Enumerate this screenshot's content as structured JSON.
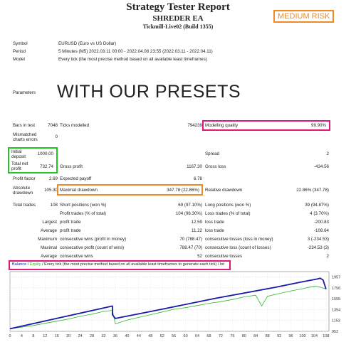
{
  "header": {
    "title": "Strategy Tester Report",
    "ea_name": "SHREDER EA",
    "server": "Tickmill-Live02 (Build 1355)",
    "risk_badge": "MEDIUM RISK"
  },
  "info": {
    "symbol_label": "Symbol",
    "symbol_value": "EURUSD (Euro vs US Dollar)",
    "period_label": "Period",
    "period_value": "5 Minutes (M5) 2022.03.11 00:00 - 2022.04.08 23:55 (2022.03.11 - 2022.04.11)",
    "model_label": "Model",
    "model_value": "Every tick (the most precise method based on all available least timeframes)"
  },
  "parameters_label": "Parameters",
  "presets_text": "WITH OUR PRESETS",
  "stats": {
    "bars_label": "Bars in test",
    "bars_value": "7048",
    "ticks_label": "Ticks modelled",
    "ticks_value": "794239",
    "quality_label": "Modelling quality",
    "quality_value": "99.90%",
    "mismatched_label_1": "Mismatched",
    "mismatched_label_2": "charts errors",
    "mismatched_value": "0",
    "initial_label_1": "Initial",
    "initial_label_2": "deposit",
    "initial_value": "1000.00",
    "spread_label": "Spread",
    "spread_value": "2",
    "netprofit_label_1": "Total net",
    "netprofit_label_2": "profit",
    "netprofit_value": "732.74",
    "grossprofit_label": "Gross profit",
    "grossprofit_value": "1167.30",
    "grossloss_label": "Gross loss",
    "grossloss_value": "-434.56",
    "pf_label": "Profit factor",
    "pf_value": "2.69",
    "ep_label": "Expected payoff",
    "ep_value": "6.78",
    "absdd_label_1": "Absolute",
    "absdd_label_2": "drawdown",
    "absdd_value": "105.30",
    "maxdd_label": "Maximal drawdown",
    "maxdd_value": "347.78 (22.86%)",
    "reldd_label": "Relative drawdown",
    "reldd_value": "22.86% (347.78)",
    "trades_label": "Total trades",
    "trades_value": "108",
    "short_label": "Short positions (won %)",
    "short_value": "69 (97.10%)",
    "long_label": "Long positions (won %)",
    "long_value": "39 (94.87%)",
    "pt_label": "Profit trades (% of total)",
    "pt_value": "104 (96.30%)",
    "lt_label": "Loss trades (% of total)",
    "lt_value": "4 (3.70%)",
    "largest_label": "Largest",
    "lp_label": "profit trade",
    "lp_value": "12.59",
    "ll_label": "loss trade",
    "ll_value": "-200.83",
    "average_label": "Average",
    "ap_label": "profit trade",
    "ap_value": "11.22",
    "al_label": "loss trade",
    "al_value": "-108.64",
    "maximum_label": "Maximum",
    "mcw_label": "consecutive wins (profit in money)",
    "mcw_value": "70 (788.47)",
    "mcl_label": "consecutive losses (loss in money)",
    "mcl_value": "3 (-234.53)",
    "maximal_label": "Maximal",
    "mcp_label": "consecutive profit (count of wins)",
    "mcp_value": "788.47 (70)",
    "mcll_label": "consecutive loss (count of losses)",
    "mcll_value": "-234.53 (3)",
    "average2_label": "Average",
    "acw_label": "consecutive wins",
    "acw_value": "52",
    "acl_label": "consecutive losses",
    "acl_value": "2"
  },
  "chart_legend": {
    "balance": "Balance",
    "sep1": " / ",
    "equity": "Equity",
    "rest": " / Every tick (the most precise method based on all available least timeframes to generate each tick) / ",
    "lot": "lot"
  },
  "colors": {
    "balance": "#1a1aa8",
    "equity": "#2eb82e",
    "pink": "#e0187c",
    "green": "#1ec81e",
    "orange": "#f08a24"
  },
  "chart_data": {
    "type": "line",
    "x_ticks": [
      "0",
      "4",
      "8",
      "12",
      "16",
      "20",
      "24",
      "28",
      "32",
      "36",
      "40",
      "44",
      "48",
      "52",
      "56",
      "60",
      "64",
      "68",
      "72",
      "76",
      "80",
      "84",
      "88",
      "92",
      "96",
      "100",
      "104",
      "108"
    ],
    "y_ticks": [
      "952",
      "1153",
      "1354",
      "1555",
      "1756",
      "1957"
    ],
    "ylim": [
      952,
      2057
    ],
    "xlim": [
      0,
      109
    ],
    "series": [
      {
        "name": "Balance",
        "x": [
          0,
          10,
          20,
          30,
          35,
          35,
          36,
          50,
          70,
          90,
          100,
          105,
          106,
          107,
          108
        ],
        "y": [
          1000,
          1120,
          1240,
          1360,
          1420,
          1260,
          1190,
          1340,
          1560,
          1760,
          1870,
          1920,
          1935,
          1900,
          1733
        ]
      },
      {
        "name": "Equity",
        "x": [
          0,
          8,
          12,
          16,
          20,
          24,
          28,
          32,
          35,
          36,
          40,
          44,
          48,
          52,
          56,
          60,
          64,
          68,
          72,
          76,
          80,
          84,
          86,
          88,
          92,
          96,
          100,
          104,
          106,
          108
        ],
        "y": [
          1000,
          1060,
          1100,
          1140,
          1180,
          1230,
          1270,
          1320,
          1340,
          1090,
          1160,
          1210,
          1260,
          1310,
          1360,
          1390,
          1430,
          1470,
          1500,
          1540,
          1590,
          1620,
          1420,
          1600,
          1650,
          1700,
          1740,
          1790,
          1770,
          1733
        ]
      }
    ]
  }
}
